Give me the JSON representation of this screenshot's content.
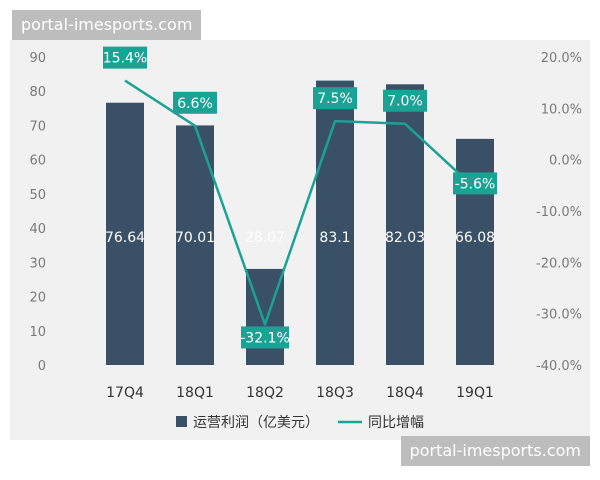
{
  "watermark": {
    "text": "portal-imesports.com"
  },
  "chart_data": {
    "type": "bar",
    "categories": [
      "17Q4",
      "18Q1",
      "18Q2",
      "18Q3",
      "18Q4",
      "19Q1"
    ],
    "series": [
      {
        "name": "运营利润（亿美元）",
        "type": "bar",
        "axis": "left",
        "color": "#3a5066",
        "values": [
          76.64,
          70.01,
          28.07,
          83.1,
          82.03,
          66.08
        ],
        "labels": [
          "76.64",
          "70.01",
          "28.07",
          "83.1",
          "82.03",
          "66.08"
        ]
      },
      {
        "name": "同比增幅",
        "type": "line",
        "axis": "right",
        "color": "#1aa395",
        "values": [
          15.4,
          6.6,
          -32.1,
          7.5,
          7.0,
          -5.6
        ],
        "labels": [
          "15.4%",
          "6.6%",
          "-32.1%",
          "7.5%",
          "7.0%",
          "-5.6%"
        ]
      }
    ],
    "y_left": {
      "min": 0,
      "max": 90,
      "ticks": [
        0,
        10,
        20,
        30,
        40,
        50,
        60,
        70,
        80,
        90
      ]
    },
    "y_right": {
      "min": -40,
      "max": 20,
      "ticks": [
        20,
        10,
        0,
        -10,
        -20,
        -30,
        -40
      ],
      "tick_labels": [
        "20.0%",
        "10.0%",
        "0.0%",
        "-10.0%",
        "-20.0%",
        "-30.0%",
        "-40.0%"
      ]
    },
    "grid": false,
    "legend_position": "bottom"
  }
}
